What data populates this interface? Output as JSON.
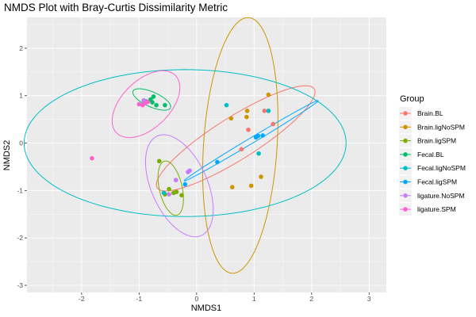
{
  "chart_data": {
    "type": "scatter",
    "title": "NMDS Plot with Bray-Curtis Dissimilarity Metric",
    "xlabel": "NMDS1",
    "ylabel": "NMDS2",
    "xlim": [
      -2.95,
      3.3
    ],
    "ylim": [
      -3.15,
      2.65
    ],
    "x_ticks": [
      -2,
      -1,
      0,
      1,
      2,
      3
    ],
    "y_ticks": [
      -3,
      -2,
      -1,
      0,
      1,
      2
    ],
    "grid": true,
    "legend_position": "right",
    "legend_title": "Group",
    "series": [
      {
        "name": "Brain.BL",
        "color": "#F8766D",
        "points": [
          [
            0.78,
            -0.13
          ],
          [
            0.9,
            0.28
          ],
          [
            1.18,
            0.68
          ],
          [
            1.33,
            0.4
          ]
        ],
        "ellipse": {
          "center": [
            0.68,
            0.1
          ],
          "semi_axes": [
            1.72,
            0.42
          ],
          "angle_deg": 38
        }
      },
      {
        "name": "Brain.ligNoSPM",
        "color": "#CD9600",
        "points": [
          [
            0.6,
            0.52
          ],
          [
            0.87,
            0.55
          ],
          [
            0.88,
            0.68
          ],
          [
            1.25,
            1.02
          ],
          [
            0.95,
            -0.9
          ],
          [
            1.12,
            -0.71
          ],
          [
            0.62,
            -0.93
          ]
        ],
        "ellipse": {
          "center": [
            0.76,
            -0.05
          ],
          "semi_axes": [
            0.64,
            2.7
          ],
          "angle_deg": -3
        }
      },
      {
        "name": "Brain.ligSPM",
        "color": "#7CAE00",
        "points": [
          [
            -0.65,
            -0.38
          ],
          [
            -0.48,
            -0.97
          ],
          [
            -0.4,
            -1.05
          ],
          [
            -0.35,
            -1.03
          ],
          [
            -0.55,
            -1.08
          ],
          [
            -0.26,
            -1.1
          ]
        ],
        "ellipse": {
          "center": [
            -0.45,
            -0.95
          ],
          "semi_axes": [
            0.2,
            0.58
          ],
          "angle_deg": 10
        }
      },
      {
        "name": "Fecal.BL",
        "color": "#00BE67",
        "points": [
          [
            -0.75,
            0.98
          ],
          [
            -0.8,
            0.92
          ],
          [
            -0.7,
            0.8
          ],
          [
            -0.55,
            0.8
          ],
          [
            -0.88,
            0.88
          ],
          [
            -0.77,
            0.86
          ]
        ],
        "ellipse": {
          "center": [
            -0.78,
            0.92
          ],
          "semi_axes": [
            0.37,
            0.15
          ],
          "angle_deg": -30
        }
      },
      {
        "name": "Fecal.ligNoSPM",
        "color": "#00BFC4",
        "points": [
          [
            0.52,
            0.8
          ],
          [
            1.25,
            0.68
          ],
          [
            1.08,
            -0.22
          ],
          [
            -0.57,
            -1.05
          ]
        ],
        "ellipse": {
          "center": [
            -0.2,
            0.0
          ],
          "semi_axes": [
            2.8,
            1.55
          ],
          "angle_deg": 0
        }
      },
      {
        "name": "Fecal.ligSPM",
        "color": "#00A9FF",
        "points": [
          [
            -0.2,
            -0.87
          ],
          [
            0.36,
            -0.4
          ],
          [
            1.03,
            0.12
          ],
          [
            1.07,
            0.15
          ],
          [
            1.15,
            0.16
          ]
        ],
        "ellipse": {
          "center": [
            0.95,
            0.05
          ],
          "semi_axes": [
            1.44,
            0.055
          ],
          "angle_deg": 36
        }
      },
      {
        "name": "ligature.NoSPM",
        "color": "#C77CFF",
        "points": [
          [
            -0.15,
            -0.61
          ],
          [
            -0.36,
            -0.78
          ],
          [
            -0.48,
            -1.08
          ],
          [
            -0.92,
            0.9
          ],
          [
            -0.12,
            -0.58
          ]
        ],
        "ellipse": {
          "center": [
            -0.3,
            -0.9
          ],
          "semi_axes": [
            0.5,
            1.12
          ],
          "angle_deg": 18
        }
      },
      {
        "name": "ligature.SPM",
        "color": "#FF61CC",
        "points": [
          [
            -1.82,
            -0.32
          ],
          [
            -1.0,
            0.82
          ],
          [
            -0.94,
            0.8
          ],
          [
            -0.9,
            0.84
          ],
          [
            -0.85,
            0.87
          ]
        ],
        "ellipse": {
          "center": [
            -0.88,
            0.82
          ],
          "semi_axes": [
            0.45,
            0.8
          ],
          "angle_deg": -35
        }
      }
    ]
  }
}
